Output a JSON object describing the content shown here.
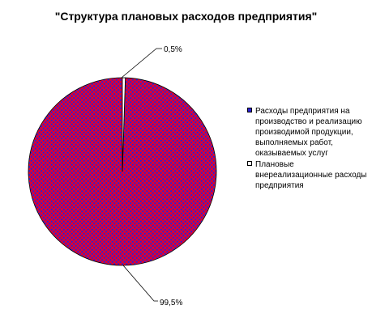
{
  "chart_data": {
    "type": "pie",
    "title": "\"Структура плановых расходов предприятия\"",
    "slices": [
      {
        "name": "Расходы предприятия на производство и реализацию производимой продукции, выполняемых работ, оказываемых услуг",
        "value": 99.5,
        "label": "99,5%",
        "color": "#e00030"
      },
      {
        "name": "Плановые внереализационные расходы предприятия",
        "value": 0.5,
        "label": "0,5%",
        "color": "#ffffff"
      }
    ],
    "legend": "right"
  },
  "colors": {
    "pattern_dot": "#2222dd",
    "pattern_base": "#e00030"
  }
}
